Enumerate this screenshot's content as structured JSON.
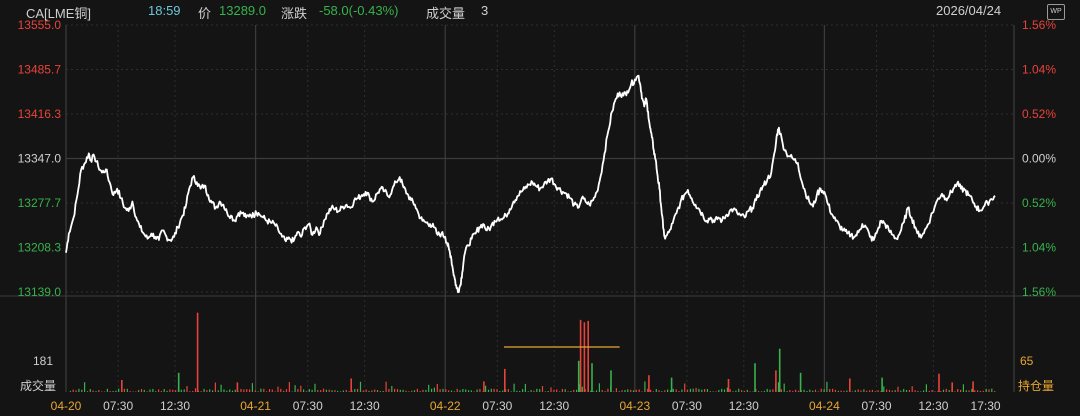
{
  "header": {
    "symbol": "CA[LME铜]",
    "time": "18:59",
    "price_label": "价",
    "price": "13289.0",
    "change_label": "涨跌",
    "change": "-58.0(-0.43%)",
    "volume_label": "成交量",
    "volume": "3",
    "date": "2026/04/24",
    "wp_icon": "WP"
  },
  "colors": {
    "background": "#141414",
    "up": "#e8433a",
    "down": "#37b24d",
    "neutral": "#cfcfcf",
    "line": "#ffffff",
    "grid_dotted": "#2e2e2e",
    "grid_solid": "#3c3c3c",
    "header_time": "#6ec6d8",
    "date_label": "#e8a632",
    "highlight": "#e8a632"
  },
  "chart_data": {
    "type": "line",
    "title": "",
    "prev_close": 13347.0,
    "ylim": [
      13139.0,
      13555.0
    ],
    "y_ticks_left": [
      "13555.0",
      "13485.7",
      "13416.3",
      "13347.0",
      "13277.7",
      "13208.3",
      "13139.0"
    ],
    "y_ticks_right": [
      "1.56%",
      "1.04%",
      "0.52%",
      "0.00%",
      "0.52%",
      "1.04%",
      "1.56%"
    ],
    "x_tick_labels": [
      "04-20",
      "07:30",
      "12:30",
      "04-21",
      "07:30",
      "12:30",
      "04-22",
      "07:30",
      "12:30",
      "04-23",
      "07:30",
      "12:30",
      "04-24",
      "07:30",
      "12:30",
      "17:30"
    ],
    "x_date_labels": [
      "04-20",
      "04-21",
      "04-22",
      "04-23",
      "04-24"
    ],
    "day_index_points": [
      0,
      20,
      40,
      60,
      80,
      100
    ],
    "price_series": [
      [
        0,
        13200
      ],
      [
        0.3,
        13230
      ],
      [
        0.8,
        13255
      ],
      [
        1.2,
        13290
      ],
      [
        1.6,
        13330
      ],
      [
        2.0,
        13340
      ],
      [
        2.4,
        13355
      ],
      [
        2.6,
        13345
      ],
      [
        3.0,
        13350
      ],
      [
        3.4,
        13335
      ],
      [
        3.8,
        13325
      ],
      [
        4.2,
        13330
      ],
      [
        4.6,
        13310
      ],
      [
        5.0,
        13290
      ],
      [
        5.4,
        13300
      ],
      [
        5.8,
        13285
      ],
      [
        6.2,
        13270
      ],
      [
        6.6,
        13265
      ],
      [
        7.0,
        13280
      ],
      [
        7.4,
        13255
      ],
      [
        7.8,
        13240
      ],
      [
        8.2,
        13230
      ],
      [
        8.6,
        13222
      ],
      [
        9.0,
        13230
      ],
      [
        9.4,
        13225
      ],
      [
        9.8,
        13220
      ],
      [
        10.2,
        13235
      ],
      [
        10.6,
        13225
      ],
      [
        11.0,
        13220
      ],
      [
        11.4,
        13225
      ],
      [
        11.8,
        13240
      ],
      [
        12.2,
        13255
      ],
      [
        12.6,
        13270
      ],
      [
        13.0,
        13300
      ],
      [
        13.4,
        13318
      ],
      [
        13.8,
        13310
      ],
      [
        14.2,
        13300
      ],
      [
        14.6,
        13305
      ],
      [
        15.0,
        13290
      ],
      [
        15.4,
        13278
      ],
      [
        15.8,
        13270
      ],
      [
        16.2,
        13280
      ],
      [
        16.6,
        13275
      ],
      [
        17.0,
        13262
      ],
      [
        17.4,
        13258
      ],
      [
        17.8,
        13250
      ],
      [
        18.2,
        13262
      ],
      [
        18.6,
        13262
      ],
      [
        19.0,
        13255
      ],
      [
        19.4,
        13260
      ],
      [
        19.8,
        13258
      ],
      [
        20.0,
        13265
      ],
      [
        20.4,
        13260
      ],
      [
        20.8,
        13255
      ],
      [
        21.2,
        13250
      ],
      [
        21.6,
        13247
      ],
      [
        22.0,
        13245
      ],
      [
        22.4,
        13235
      ],
      [
        22.8,
        13225
      ],
      [
        23.2,
        13218
      ],
      [
        23.6,
        13222
      ],
      [
        24.0,
        13218
      ],
      [
        24.4,
        13232
      ],
      [
        24.8,
        13225
      ],
      [
        25.2,
        13240
      ],
      [
        25.6,
        13245
      ],
      [
        26.0,
        13228
      ],
      [
        26.4,
        13240
      ],
      [
        26.8,
        13230
      ],
      [
        27.2,
        13250
      ],
      [
        27.6,
        13262
      ],
      [
        28.0,
        13270
      ],
      [
        28.4,
        13268
      ],
      [
        28.8,
        13265
      ],
      [
        29.2,
        13272
      ],
      [
        29.6,
        13275
      ],
      [
        30.0,
        13270
      ],
      [
        30.4,
        13282
      ],
      [
        30.8,
        13285
      ],
      [
        31.2,
        13290
      ],
      [
        31.6,
        13295
      ],
      [
        32.0,
        13288
      ],
      [
        32.4,
        13280
      ],
      [
        32.8,
        13292
      ],
      [
        33.2,
        13300
      ],
      [
        33.6,
        13296
      ],
      [
        34.0,
        13288
      ],
      [
        34.4,
        13298
      ],
      [
        34.8,
        13310
      ],
      [
        35.2,
        13318
      ],
      [
        35.6,
        13302
      ],
      [
        36.0,
        13292
      ],
      [
        36.4,
        13282
      ],
      [
        36.8,
        13275
      ],
      [
        37.2,
        13260
      ],
      [
        37.6,
        13250
      ],
      [
        38.0,
        13247
      ],
      [
        38.4,
        13245
      ],
      [
        38.8,
        13240
      ],
      [
        39.2,
        13228
      ],
      [
        39.6,
        13230
      ],
      [
        40.0,
        13225
      ],
      [
        40.2,
        13215
      ],
      [
        40.4,
        13205
      ],
      [
        40.6,
        13195
      ],
      [
        40.8,
        13175
      ],
      [
        41.0,
        13160
      ],
      [
        41.2,
        13145
      ],
      [
        41.4,
        13142
      ],
      [
        41.6,
        13150
      ],
      [
        41.8,
        13170
      ],
      [
        42.0,
        13195
      ],
      [
        42.4,
        13212
      ],
      [
        42.8,
        13222
      ],
      [
        43.2,
        13230
      ],
      [
        43.6,
        13240
      ],
      [
        44.0,
        13245
      ],
      [
        44.4,
        13235
      ],
      [
        44.8,
        13240
      ],
      [
        45.2,
        13250
      ],
      [
        45.6,
        13255
      ],
      [
        46.0,
        13252
      ],
      [
        46.4,
        13258
      ],
      [
        46.8,
        13268
      ],
      [
        47.2,
        13280
      ],
      [
        47.6,
        13288
      ],
      [
        48.0,
        13295
      ],
      [
        48.4,
        13300
      ],
      [
        48.8,
        13306
      ],
      [
        49.2,
        13310
      ],
      [
        49.6,
        13304
      ],
      [
        50.0,
        13300
      ],
      [
        50.4,
        13306
      ],
      [
        50.8,
        13312
      ],
      [
        51.2,
        13316
      ],
      [
        51.6,
        13306
      ],
      [
        52.0,
        13300
      ],
      [
        52.4,
        13295
      ],
      [
        52.8,
        13292
      ],
      [
        53.2,
        13285
      ],
      [
        53.6,
        13275
      ],
      [
        54.0,
        13270
      ],
      [
        54.4,
        13285
      ],
      [
        54.8,
        13280
      ],
      [
        55.2,
        13275
      ],
      [
        55.6,
        13282
      ],
      [
        56.0,
        13295
      ],
      [
        56.4,
        13320
      ],
      [
        56.8,
        13355
      ],
      [
        57.2,
        13390
      ],
      [
        57.6,
        13420
      ],
      [
        58.0,
        13440
      ],
      [
        58.4,
        13450
      ],
      [
        58.8,
        13445
      ],
      [
        59.2,
        13452
      ],
      [
        59.6,
        13462
      ],
      [
        60.0,
        13470
      ],
      [
        60.4,
        13476
      ],
      [
        60.6,
        13460
      ],
      [
        60.8,
        13440
      ],
      [
        61.0,
        13428
      ],
      [
        61.2,
        13440
      ],
      [
        61.4,
        13420
      ],
      [
        61.6,
        13395
      ],
      [
        61.8,
        13380
      ],
      [
        62.0,
        13360
      ],
      [
        62.2,
        13345
      ],
      [
        62.4,
        13320
      ],
      [
        62.6,
        13300
      ],
      [
        62.8,
        13270
      ],
      [
        63.0,
        13238
      ],
      [
        63.2,
        13222
      ],
      [
        63.6,
        13232
      ],
      [
        64.0,
        13246
      ],
      [
        64.4,
        13262
      ],
      [
        64.8,
        13278
      ],
      [
        65.2,
        13290
      ],
      [
        65.6,
        13298
      ],
      [
        66.0,
        13285
      ],
      [
        66.4,
        13275
      ],
      [
        66.8,
        13268
      ],
      [
        67.2,
        13258
      ],
      [
        67.6,
        13250
      ],
      [
        68.0,
        13255
      ],
      [
        68.4,
        13248
      ],
      [
        68.8,
        13255
      ],
      [
        69.2,
        13250
      ],
      [
        69.6,
        13258
      ],
      [
        70.0,
        13265
      ],
      [
        70.4,
        13268
      ],
      [
        70.8,
        13262
      ],
      [
        71.2,
        13258
      ],
      [
        71.6,
        13255
      ],
      [
        72.0,
        13265
      ],
      [
        72.4,
        13270
      ],
      [
        72.8,
        13282
      ],
      [
        73.2,
        13296
      ],
      [
        73.6,
        13305
      ],
      [
        74.0,
        13315
      ],
      [
        74.4,
        13325
      ],
      [
        74.8,
        13360
      ],
      [
        75.0,
        13385
      ],
      [
        75.2,
        13395
      ],
      [
        75.6,
        13370
      ],
      [
        76.0,
        13355
      ],
      [
        76.4,
        13350
      ],
      [
        76.8,
        13345
      ],
      [
        77.2,
        13340
      ],
      [
        77.6,
        13312
      ],
      [
        78.0,
        13294
      ],
      [
        78.4,
        13280
      ],
      [
        78.8,
        13272
      ],
      [
        79.2,
        13290
      ],
      [
        79.6,
        13300
      ],
      [
        80.0,
        13295
      ],
      [
        80.4,
        13275
      ],
      [
        80.8,
        13260
      ],
      [
        81.2,
        13250
      ],
      [
        81.6,
        13242
      ],
      [
        82.0,
        13235
      ],
      [
        82.4,
        13230
      ],
      [
        82.8,
        13228
      ],
      [
        83.2,
        13225
      ],
      [
        83.6,
        13232
      ],
      [
        84.0,
        13245
      ],
      [
        84.4,
        13240
      ],
      [
        84.8,
        13225
      ],
      [
        85.2,
        13220
      ],
      [
        85.6,
        13235
      ],
      [
        86.0,
        13250
      ],
      [
        86.4,
        13245
      ],
      [
        86.8,
        13235
      ],
      [
        87.2,
        13228
      ],
      [
        87.6,
        13222
      ],
      [
        88.0,
        13232
      ],
      [
        88.4,
        13248
      ],
      [
        88.8,
        13270
      ],
      [
        89.2,
        13255
      ],
      [
        89.6,
        13240
      ],
      [
        90.0,
        13225
      ],
      [
        90.4,
        13230
      ],
      [
        90.8,
        13240
      ],
      [
        91.2,
        13255
      ],
      [
        91.6,
        13270
      ],
      [
        92.0,
        13285
      ],
      [
        92.4,
        13292
      ],
      [
        92.8,
        13285
      ],
      [
        93.2,
        13290
      ],
      [
        93.6,
        13300
      ],
      [
        94.0,
        13308
      ],
      [
        94.4,
        13300
      ],
      [
        94.8,
        13298
      ],
      [
        95.2,
        13290
      ],
      [
        95.6,
        13282
      ],
      [
        96.0,
        13272
      ],
      [
        96.4,
        13266
      ],
      [
        96.8,
        13272
      ],
      [
        97.2,
        13278
      ],
      [
        97.6,
        13284
      ],
      [
        98.0,
        13289
      ]
    ],
    "volume_series": {
      "y_tick_left": "181",
      "y_tick_right": "65",
      "label_left": "成交量",
      "label_right": "持仓量",
      "max_volume": 181,
      "spikes": [
        [
          13.8,
          165,
          "up"
        ],
        [
          11.8,
          40,
          "down"
        ],
        [
          5.8,
          25,
          "up"
        ],
        [
          18.0,
          20,
          "up"
        ],
        [
          30.0,
          28,
          "up"
        ],
        [
          44.0,
          22,
          "up"
        ],
        [
          46.2,
          48,
          "up"
        ],
        [
          54.2,
          150,
          "up"
        ],
        [
          54.6,
          145,
          "up"
        ],
        [
          55.0,
          148,
          "up"
        ],
        [
          54.0,
          65,
          "down"
        ],
        [
          55.4,
          60,
          "down"
        ],
        [
          57.4,
          45,
          "down"
        ],
        [
          61.4,
          35,
          "up"
        ],
        [
          63.8,
          30,
          "down"
        ],
        [
          69.8,
          27,
          "up"
        ],
        [
          72.6,
          60,
          "down"
        ],
        [
          74.8,
          45,
          "up"
        ],
        [
          75.2,
          90,
          "down"
        ],
        [
          77.4,
          40,
          "down"
        ],
        [
          82.6,
          28,
          "up"
        ],
        [
          86.0,
          30,
          "down"
        ],
        [
          92.0,
          38,
          "up"
        ],
        [
          93.4,
          20,
          "up"
        ],
        [
          95.6,
          22,
          "up"
        ]
      ],
      "highlight_line": {
        "x_from": 46.2,
        "x_to": 58.4,
        "value": 65
      }
    }
  }
}
